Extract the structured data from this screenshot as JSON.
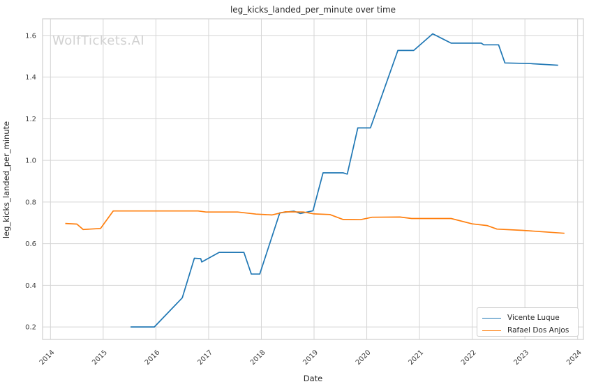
{
  "watermark": {
    "text": "WolfTickets.AI",
    "color": "#d1d1d1"
  },
  "legend": {
    "position": "lower right",
    "items": [
      {
        "label": "Vicente Luque",
        "color": "#1f77b4"
      },
      {
        "label": "Rafael Dos Anjos",
        "color": "#ff7f0e"
      }
    ]
  },
  "chart_data": {
    "type": "line",
    "title": "leg_kicks_landed_per_minute over time",
    "xlabel": "Date",
    "ylabel": "leg_kicks_landed_per_minute",
    "grid": true,
    "legend_position": "lower right",
    "xlim": [
      2013.85,
      2024.11
    ],
    "ylim": [
      0.14,
      1.68
    ],
    "x_ticks": [
      {
        "value": 2014,
        "label": "2014"
      },
      {
        "value": 2015,
        "label": "2015"
      },
      {
        "value": 2016,
        "label": "2016"
      },
      {
        "value": 2017,
        "label": "2017"
      },
      {
        "value": 2018,
        "label": "2018"
      },
      {
        "value": 2019,
        "label": "2019"
      },
      {
        "value": 2020,
        "label": "2020"
      },
      {
        "value": 2021,
        "label": "2021"
      },
      {
        "value": 2022,
        "label": "2022"
      },
      {
        "value": 2023,
        "label": "2023"
      },
      {
        "value": 2024,
        "label": "2024"
      }
    ],
    "y_ticks": [
      {
        "value": 0.2,
        "label": "0.2"
      },
      {
        "value": 0.4,
        "label": "0.4"
      },
      {
        "value": 0.6,
        "label": "0.6"
      },
      {
        "value": 0.8,
        "label": "0.8"
      },
      {
        "value": 1.0,
        "label": "1.0"
      },
      {
        "value": 1.2,
        "label": "1.2"
      },
      {
        "value": 1.4,
        "label": "1.4"
      },
      {
        "value": 1.6,
        "label": "1.6"
      }
    ],
    "series": [
      {
        "name": "Vicente Luque",
        "color": "#1f77b4",
        "points": [
          [
            2015.52,
            0.2
          ],
          [
            2015.97,
            0.2
          ],
          [
            2016.5,
            0.34
          ],
          [
            2016.73,
            0.53
          ],
          [
            2016.85,
            0.528
          ],
          [
            2016.87,
            0.512
          ],
          [
            2017.2,
            0.558
          ],
          [
            2017.67,
            0.558
          ],
          [
            2017.81,
            0.454
          ],
          [
            2017.97,
            0.454
          ],
          [
            2018.35,
            0.748
          ],
          [
            2018.62,
            0.756
          ],
          [
            2018.74,
            0.745
          ],
          [
            2018.98,
            0.758
          ],
          [
            2019.17,
            0.94
          ],
          [
            2019.55,
            0.94
          ],
          [
            2019.63,
            0.934
          ],
          [
            2019.83,
            1.156
          ],
          [
            2020.07,
            1.156
          ],
          [
            2020.59,
            1.528
          ],
          [
            2020.89,
            1.528
          ],
          [
            2021.25,
            1.608
          ],
          [
            2021.6,
            1.563
          ],
          [
            2022.17,
            1.563
          ],
          [
            2022.22,
            1.555
          ],
          [
            2022.5,
            1.555
          ],
          [
            2022.62,
            1.468
          ],
          [
            2023.1,
            1.465
          ],
          [
            2023.63,
            1.457
          ]
        ]
      },
      {
        "name": "Rafael Dos Anjos",
        "color": "#ff7f0e",
        "points": [
          [
            2014.28,
            0.697
          ],
          [
            2014.5,
            0.694
          ],
          [
            2014.62,
            0.668
          ],
          [
            2014.95,
            0.673
          ],
          [
            2015.19,
            0.757
          ],
          [
            2016.8,
            0.757
          ],
          [
            2016.95,
            0.752
          ],
          [
            2017.55,
            0.752
          ],
          [
            2017.9,
            0.742
          ],
          [
            2018.2,
            0.738
          ],
          [
            2018.45,
            0.753
          ],
          [
            2018.8,
            0.752
          ],
          [
            2019.0,
            0.743
          ],
          [
            2019.3,
            0.74
          ],
          [
            2019.55,
            0.716
          ],
          [
            2019.88,
            0.715
          ],
          [
            2020.1,
            0.727
          ],
          [
            2020.63,
            0.728
          ],
          [
            2020.85,
            0.721
          ],
          [
            2021.6,
            0.721
          ],
          [
            2022.0,
            0.695
          ],
          [
            2022.28,
            0.687
          ],
          [
            2022.47,
            0.67
          ],
          [
            2022.95,
            0.664
          ],
          [
            2023.75,
            0.65
          ]
        ]
      }
    ],
    "styles": {
      "background": "#ffffff",
      "grid_color": "#d5d5d5",
      "spine_color": "#cfcfcf",
      "tick_text_color": "#3d3d3d",
      "text_color": "#262626"
    }
  }
}
